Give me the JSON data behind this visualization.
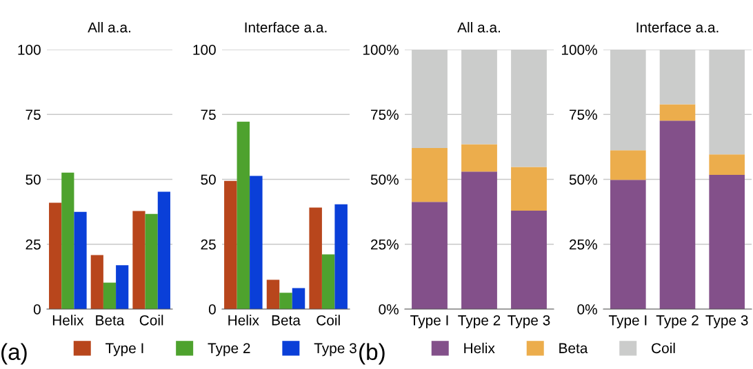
{
  "chart_data": [
    {
      "type": "bar",
      "title": "All a.a.",
      "categories": [
        "Helix",
        "Beta",
        "Coil"
      ],
      "ylim": [
        0,
        100
      ],
      "yticks": [
        0,
        25,
        50,
        75,
        100
      ],
      "grid": "y",
      "legend": "bottom",
      "annotations": [
        "(a)"
      ],
      "series": [
        {
          "name": "Type I",
          "color": "#b8461c",
          "values": [
            41.0,
            20.8,
            37.8
          ]
        },
        {
          "name": "Type 2",
          "color": "#4ea22e",
          "values": [
            52.6,
            10.2,
            36.7
          ]
        },
        {
          "name": "Type 3",
          "color": "#0a3fd8",
          "values": [
            37.5,
            16.9,
            45.2
          ]
        }
      ]
    },
    {
      "type": "bar",
      "title": "Interface a.a.",
      "categories": [
        "Helix",
        "Beta",
        "Coil"
      ],
      "ylim": [
        0,
        100
      ],
      "yticks": [
        0,
        25,
        50,
        75,
        100
      ],
      "grid": "y",
      "series": [
        {
          "color": "#b8461c",
          "values": [
            49.4,
            11.3,
            39.1
          ]
        },
        {
          "color": "#4ea22e",
          "values": [
            72.2,
            6.3,
            21.1
          ]
        },
        {
          "color": "#0a3fd8",
          "values": [
            51.3,
            8.1,
            40.4
          ]
        }
      ]
    },
    {
      "type": "bar",
      "stacked": true,
      "title": "All a.a.",
      "categories": [
        "Type I",
        "Type 2",
        "Type 3"
      ],
      "ylim": [
        0,
        100
      ],
      "yticks": [
        {
          "value": 0,
          "label": "0%"
        },
        {
          "value": 25,
          "label": "25%"
        },
        {
          "value": 50,
          "label": "50%"
        },
        {
          "value": 75,
          "label": "75%"
        },
        {
          "value": 100,
          "label": "100%"
        }
      ],
      "grid": "y",
      "legend": "bottom",
      "annotations": [
        "(b)"
      ],
      "series": [
        {
          "name": "Helix",
          "color": "#83508a",
          "values": [
            41.3,
            53.0,
            37.9
          ]
        },
        {
          "name": "Beta",
          "color": "#ecad4c",
          "values": [
            20.8,
            10.5,
            16.9
          ]
        },
        {
          "name": "Coil",
          "color": "#cbcccb",
          "values": [
            37.9,
            36.5,
            45.2
          ]
        }
      ]
    },
    {
      "type": "bar",
      "stacked": true,
      "title": "Interface a.a.",
      "categories": [
        "Type I",
        "Type 2",
        "Type 3"
      ],
      "ylim": [
        0,
        100
      ],
      "yticks": [
        {
          "value": 0,
          "label": "0%"
        },
        {
          "value": 25,
          "label": "25%"
        },
        {
          "value": 50,
          "label": "50%"
        },
        {
          "value": 75,
          "label": "75%"
        },
        {
          "value": 100,
          "label": "100%"
        }
      ],
      "grid": "y",
      "series": [
        {
          "color": "#83508a",
          "values": [
            49.8,
            72.6,
            51.7
          ]
        },
        {
          "color": "#ecad4c",
          "values": [
            11.4,
            6.3,
            7.9
          ]
        },
        {
          "color": "#cbcccb",
          "values": [
            38.8,
            21.1,
            40.4
          ]
        }
      ]
    }
  ]
}
